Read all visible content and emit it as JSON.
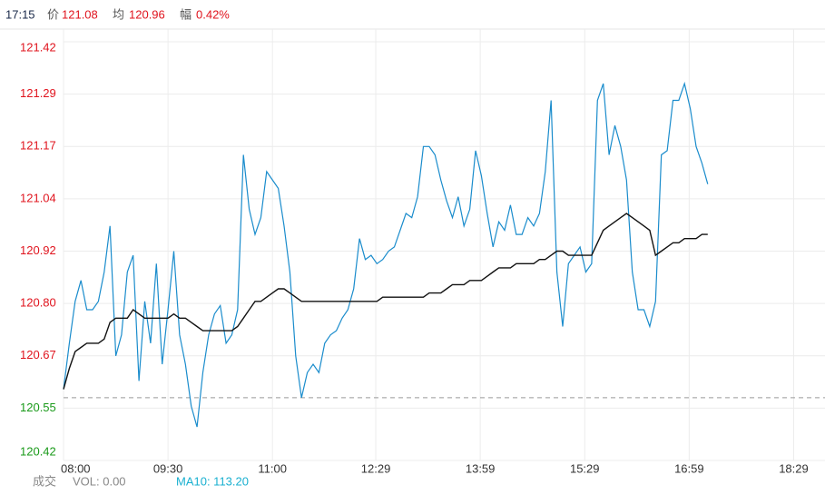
{
  "header": {
    "time": "17:15",
    "price_label": "价",
    "price": "121.08",
    "avg_label": "均",
    "avg": "120.96",
    "change_label": "幅",
    "change": "0.42%"
  },
  "footer": {
    "volume_label": "成交",
    "vol": "VOL: 0.00",
    "ma10": "MA10: 113.20"
  },
  "chart_data": {
    "type": "line",
    "x": [
      "08:00",
      "08:05",
      "08:10",
      "08:15",
      "08:20",
      "08:25",
      "08:30",
      "08:35",
      "08:40",
      "08:45",
      "08:50",
      "08:55",
      "09:00",
      "09:05",
      "09:10",
      "09:15",
      "09:20",
      "09:25",
      "09:30",
      "09:35",
      "09:40",
      "09:45",
      "09:50",
      "09:55",
      "10:00",
      "10:05",
      "10:10",
      "10:15",
      "10:20",
      "10:25",
      "10:30",
      "10:35",
      "10:40",
      "10:45",
      "10:50",
      "10:55",
      "11:00",
      "11:05",
      "11:10",
      "11:15",
      "11:20",
      "11:25",
      "11:30",
      "11:35",
      "11:40",
      "11:45",
      "11:50",
      "11:55",
      "12:00",
      "12:05",
      "12:10",
      "12:15",
      "12:20",
      "12:25",
      "12:30",
      "12:35",
      "12:40",
      "12:45",
      "12:50",
      "12:55",
      "13:00",
      "13:05",
      "13:10",
      "13:15",
      "13:20",
      "13:25",
      "13:30",
      "13:35",
      "13:40",
      "13:45",
      "13:50",
      "13:55",
      "14:00",
      "14:05",
      "14:10",
      "14:15",
      "14:20",
      "14:25",
      "14:30",
      "14:35",
      "14:40",
      "14:45",
      "14:50",
      "14:55",
      "15:00",
      "15:05",
      "15:10",
      "15:15",
      "15:20",
      "15:25",
      "15:30",
      "15:35",
      "15:40",
      "15:45",
      "15:50",
      "15:55",
      "16:00",
      "16:05",
      "16:10",
      "16:15",
      "16:20",
      "16:25",
      "16:30",
      "16:35",
      "16:40",
      "16:45",
      "16:50",
      "16:55",
      "17:00",
      "17:05",
      "17:10",
      "17:15"
    ],
    "series": [
      {
        "name": "price",
        "color": "#1a8ccc",
        "values": [
          120.59,
          120.7,
          120.8,
          120.85,
          120.78,
          120.78,
          120.8,
          120.87,
          120.98,
          120.67,
          120.72,
          120.87,
          120.91,
          120.61,
          120.8,
          120.7,
          120.89,
          120.65,
          120.78,
          120.92,
          120.72,
          120.65,
          120.55,
          120.5,
          120.63,
          120.72,
          120.77,
          120.79,
          120.7,
          120.72,
          120.78,
          121.15,
          121.02,
          120.96,
          121.0,
          121.11,
          121.09,
          121.07,
          120.98,
          120.87,
          120.67,
          120.57,
          120.63,
          120.65,
          120.63,
          120.7,
          120.72,
          120.73,
          120.76,
          120.78,
          120.83,
          120.95,
          120.9,
          120.91,
          120.89,
          120.9,
          120.92,
          120.93,
          120.97,
          121.01,
          121.0,
          121.05,
          121.17,
          121.17,
          121.15,
          121.09,
          121.04,
          121.0,
          121.05,
          120.98,
          121.02,
          121.16,
          121.1,
          121.01,
          120.93,
          120.99,
          120.97,
          121.03,
          120.96,
          120.96,
          121.0,
          120.98,
          121.01,
          121.11,
          121.28,
          120.87,
          120.74,
          120.89,
          120.91,
          120.93,
          120.87,
          120.89,
          121.28,
          121.32,
          121.15,
          121.22,
          121.17,
          121.09,
          120.87,
          120.78,
          120.78,
          120.74,
          120.8,
          121.15,
          121.16,
          121.28,
          121.28,
          121.32,
          121.26,
          121.17,
          121.13,
          121.08
        ]
      },
      {
        "name": "average",
        "color": "#111111",
        "values": [
          120.59,
          120.64,
          120.68,
          120.69,
          120.7,
          120.7,
          120.7,
          120.71,
          120.75,
          120.76,
          120.76,
          120.76,
          120.78,
          120.77,
          120.76,
          120.76,
          120.76,
          120.76,
          120.76,
          120.77,
          120.76,
          120.76,
          120.75,
          120.74,
          120.73,
          120.73,
          120.73,
          120.73,
          120.73,
          120.73,
          120.74,
          120.76,
          120.78,
          120.8,
          120.8,
          120.81,
          120.82,
          120.83,
          120.83,
          120.82,
          120.81,
          120.8,
          120.8,
          120.8,
          120.8,
          120.8,
          120.8,
          120.8,
          120.8,
          120.8,
          120.8,
          120.8,
          120.8,
          120.8,
          120.8,
          120.81,
          120.81,
          120.81,
          120.81,
          120.81,
          120.81,
          120.81,
          120.81,
          120.82,
          120.82,
          120.82,
          120.83,
          120.84,
          120.84,
          120.84,
          120.85,
          120.85,
          120.85,
          120.86,
          120.87,
          120.88,
          120.88,
          120.88,
          120.89,
          120.89,
          120.89,
          120.89,
          120.9,
          120.9,
          120.91,
          120.92,
          120.92,
          120.91,
          120.91,
          120.91,
          120.91,
          120.91,
          120.94,
          120.97,
          120.98,
          120.99,
          121.0,
          121.01,
          121.0,
          120.99,
          120.98,
          120.97,
          120.91,
          120.92,
          120.93,
          120.94,
          120.94,
          120.95,
          120.95,
          120.95,
          120.96,
          120.96
        ]
      }
    ],
    "baseline": 120.57,
    "up_color": "#e0141e",
    "down_color": "#1a9a1a",
    "xlim": [
      "08:00",
      "18:56"
    ],
    "xticks": [
      "08:00",
      "09:30",
      "11:00",
      "12:29",
      "13:59",
      "15:29",
      "16:59",
      "18:29"
    ],
    "ylim": [
      120.42,
      121.42
    ],
    "yticks": [
      {
        "value": 120.42,
        "label": "120.42"
      },
      {
        "value": 120.545,
        "label": "120.55"
      },
      {
        "value": 120.67,
        "label": "120.67"
      },
      {
        "value": 120.795,
        "label": "120.80"
      },
      {
        "value": 120.92,
        "label": "120.92"
      },
      {
        "value": 121.045,
        "label": "121.04"
      },
      {
        "value": 121.17,
        "label": "121.17"
      },
      {
        "value": 121.295,
        "label": "121.29"
      },
      {
        "value": 121.42,
        "label": "121.42"
      }
    ],
    "grid": true
  }
}
